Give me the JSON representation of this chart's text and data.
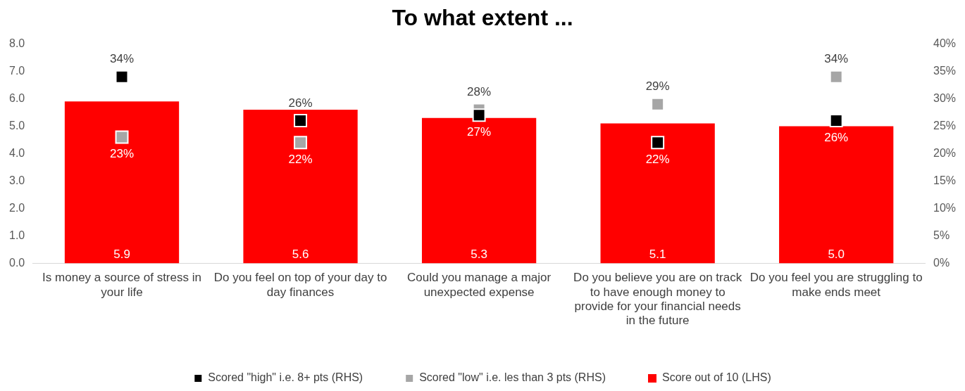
{
  "chart_data": {
    "type": "bar",
    "title": "To what extent ...",
    "categories": [
      "Is money a source of stress in your life",
      "Do you feel on top of your day to day finances",
      "Could you manage a major unexpected expense",
      "Do you believe you are on track to have enough money to provide for your financial needs in the future",
      "Do you feel you are struggling to make ends meet"
    ],
    "series": [
      {
        "name": "Score out of 10 (LHS)",
        "color": "#ff0000",
        "values": [
          5.9,
          5.6,
          5.3,
          5.1,
          5.0
        ],
        "value_labels": [
          "5.9",
          "5.6",
          "5.3",
          "5.1",
          "5.0"
        ]
      },
      {
        "name": "Scored \"high\" i.e. 8+ pts (RHS)",
        "type": "scatter",
        "axis": "y2",
        "color": "#000000",
        "values": [
          34,
          26,
          27,
          22,
          26
        ],
        "value_labels": [
          "34%",
          "26%",
          "27%",
          "22%",
          "26%"
        ]
      },
      {
        "name": "Scored \"low\" i.e. les than 3 pts (RHS)",
        "type": "scatter",
        "axis": "y2",
        "color": "#a6a6a6",
        "values": [
          23,
          22,
          28,
          29,
          34
        ],
        "value_labels": [
          "23%",
          "22%",
          "28%",
          "29%",
          "34%"
        ]
      }
    ],
    "ylim": [
      0,
      8
    ],
    "yticks": [
      {
        "value": 0,
        "label": "0.0"
      },
      {
        "value": 1,
        "label": "1.0"
      },
      {
        "value": 2,
        "label": "2.0"
      },
      {
        "value": 3,
        "label": "3.0"
      },
      {
        "value": 4,
        "label": "4.0"
      },
      {
        "value": 5,
        "label": "5.0"
      },
      {
        "value": 6,
        "label": "6.0"
      },
      {
        "value": 7,
        "label": "7.0"
      },
      {
        "value": 8,
        "label": "8.0"
      }
    ],
    "y2lim": [
      0,
      40
    ],
    "y2ticks": [
      {
        "value": 0,
        "label": "0%"
      },
      {
        "value": 5,
        "label": "5%"
      },
      {
        "value": 10,
        "label": "10%"
      },
      {
        "value": 15,
        "label": "15%"
      },
      {
        "value": 20,
        "label": "20%"
      },
      {
        "value": 25,
        "label": "25%"
      },
      {
        "value": 30,
        "label": "30%"
      },
      {
        "value": 35,
        "label": "35%"
      },
      {
        "value": 40,
        "label": "40%"
      }
    ],
    "grid": false,
    "legend": "bottom",
    "marker": "square"
  }
}
